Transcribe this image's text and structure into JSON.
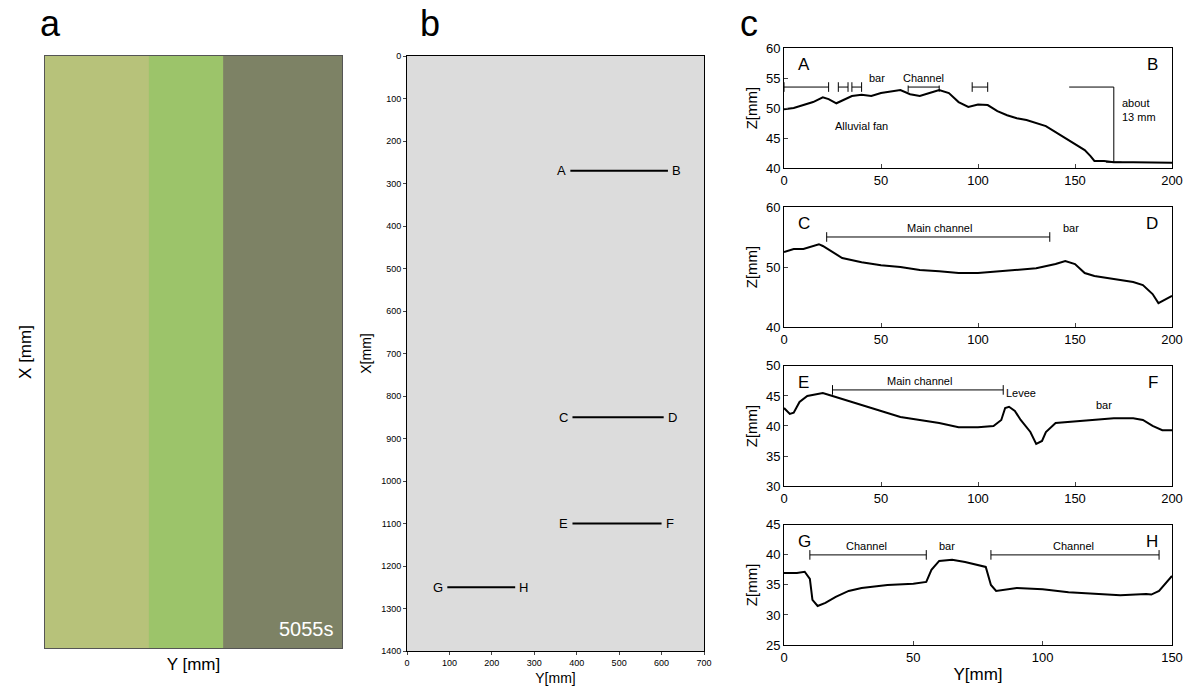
{
  "chart_data": [
    {
      "panel": "a",
      "type": "image",
      "xlabel": "Y [mm]",
      "ylabel": "X [mm]",
      "annotations": [
        {
          "text": "5055s"
        }
      ],
      "tick_labels": false
    },
    {
      "panel": "b",
      "type": "line",
      "xlabel": "Y[mm]",
      "ylabel": "X[mm]",
      "xlim": [
        0,
        700
      ],
      "xticks": [
        0,
        100,
        200,
        300,
        400,
        500,
        600,
        700
      ],
      "ylim": [
        1400,
        0
      ],
      "yticks": [
        0,
        100,
        200,
        300,
        400,
        500,
        600,
        700,
        800,
        900,
        1000,
        1100,
        1200,
        1300,
        1400
      ],
      "color": "#000000",
      "series": [
        {
          "start": "A",
          "end": "B",
          "x": [
            385,
            615
          ],
          "values": [
            270,
            270
          ]
        },
        {
          "start": "C",
          "end": "D",
          "x": [
            390,
            605
          ],
          "values": [
            850,
            850
          ]
        },
        {
          "start": "E",
          "end": "F",
          "x": [
            390,
            600
          ],
          "values": [
            1100,
            1100
          ]
        },
        {
          "start": "G",
          "end": "H",
          "x": [
            95,
            255
          ],
          "values": [
            1250,
            1250
          ]
        }
      ]
    },
    {
      "panel": "c",
      "type": "line",
      "color": "#000000",
      "subplots": [
        {
          "start": "A",
          "end": "B",
          "ylabel": "Z[mm]",
          "xlim": [
            0,
            200
          ],
          "xticks": [
            0,
            50,
            100,
            150,
            200
          ],
          "ylim": [
            40,
            60
          ],
          "yticks": [
            40,
            45,
            50,
            55,
            60
          ],
          "x": [
            0,
            5,
            10,
            15,
            20,
            23,
            27,
            30,
            35,
            40,
            45,
            50,
            55,
            60,
            65,
            70,
            75,
            80,
            85,
            90,
            95,
            100,
            105,
            110,
            115,
            120,
            125,
            130,
            135,
            140,
            145,
            150,
            155,
            158,
            160,
            165,
            170,
            180,
            190,
            200
          ],
          "values": [
            49.8,
            50,
            50.5,
            51,
            51.8,
            51.5,
            50.8,
            51.3,
            52,
            52.2,
            52,
            52.5,
            52.8,
            53,
            52.3,
            52,
            52.5,
            53,
            52.5,
            51,
            50.2,
            50.6,
            50.5,
            49.5,
            48.8,
            48.3,
            48,
            47.5,
            47,
            46,
            45,
            44,
            43,
            42,
            41.2,
            41.2,
            41,
            41,
            40.9,
            40.9
          ],
          "annotations": [
            {
              "text": "bar",
              "x": 48,
              "y": 55
            },
            {
              "text": "Channel",
              "x": 72,
              "y": 55
            },
            {
              "text": "Alluvial fan",
              "x": 40,
              "y": 47
            }
          ],
          "spans": [
            {
              "x0": 0,
              "x1": 23,
              "y": 53.5
            },
            {
              "x0": 28,
              "x1": 33,
              "y": 53.5
            },
            {
              "x0": 35,
              "x1": 40,
              "y": 53.5
            },
            {
              "x0": 64,
              "x1": 80,
              "y": 53.5
            },
            {
              "x0": 97,
              "x1": 105,
              "y": 53.5
            }
          ],
          "measure": {
            "label": "about 13 mm",
            "x0": 147,
            "x": 170,
            "y0": 41,
            "y1": 53.5
          }
        },
        {
          "start": "C",
          "end": "D",
          "ylabel": "Z[mm]",
          "xlim": [
            0,
            200
          ],
          "xticks": [
            0,
            50,
            100,
            150,
            200
          ],
          "ylim": [
            40,
            60
          ],
          "yticks": [
            40,
            50,
            60
          ],
          "x": [
            0,
            5,
            10,
            15,
            18,
            20,
            25,
            30,
            40,
            50,
            60,
            70,
            80,
            90,
            100,
            110,
            120,
            130,
            140,
            145,
            150,
            155,
            160,
            170,
            180,
            185,
            190,
            193,
            196,
            200
          ],
          "values": [
            52.5,
            53,
            53,
            53.5,
            53.8,
            53.5,
            52.5,
            51.5,
            50.8,
            50.3,
            50,
            49.5,
            49.3,
            49,
            49,
            49.3,
            49.5,
            49.8,
            50.5,
            51,
            50.5,
            49,
            48.5,
            48,
            47.5,
            47,
            45.5,
            44,
            44.5,
            45.2
          ],
          "annotations": [
            {
              "text": "Main channel",
              "x": 80,
              "y": 56.5
            },
            {
              "text": "bar",
              "x": 148,
              "y": 56.5
            }
          ],
          "spans": [
            {
              "x0": 22,
              "x1": 137,
              "y": 55
            }
          ]
        },
        {
          "start": "E",
          "end": "F",
          "ylabel": "Z[mm]",
          "xlim": [
            0,
            200
          ],
          "xticks": [
            0,
            50,
            100,
            150,
            200
          ],
          "ylim": [
            30,
            50
          ],
          "yticks": [
            30,
            35,
            40,
            45,
            50
          ],
          "x": [
            0,
            3,
            5,
            8,
            12,
            20,
            25,
            30,
            40,
            50,
            60,
            70,
            80,
            90,
            100,
            108,
            112,
            114,
            116,
            119,
            122,
            127,
            130,
            133,
            135,
            140,
            150,
            160,
            170,
            180,
            185,
            190,
            195,
            200
          ],
          "values": [
            43,
            42,
            42.2,
            44,
            45,
            45.5,
            45,
            44.5,
            43.5,
            42.5,
            41.5,
            41,
            40.5,
            39.8,
            39.8,
            40,
            41,
            43,
            43.2,
            42.5,
            41,
            39,
            37,
            37.5,
            39,
            40.5,
            40.8,
            41,
            41.3,
            41.3,
            41,
            40,
            39.3,
            39.3
          ],
          "annotations": [
            {
              "text": "Main channel",
              "x": 70,
              "y": 47.5
            },
            {
              "text": "Levee",
              "x": 122,
              "y": 45.5
            },
            {
              "text": "bar",
              "x": 165,
              "y": 43.5
            }
          ],
          "spans": [
            {
              "x0": 25,
              "x1": 113,
              "y": 46
            }
          ]
        },
        {
          "start": "G",
          "end": "H",
          "ylabel": "Z[mm]",
          "xlabel": "Y[mm]",
          "xlim": [
            0,
            150
          ],
          "xticks": [
            0,
            50,
            100,
            150
          ],
          "ylim": [
            25,
            45
          ],
          "yticks": [
            25,
            30,
            35,
            40,
            45
          ],
          "x": [
            0,
            5,
            8,
            10,
            11,
            13,
            16,
            20,
            25,
            30,
            40,
            50,
            55,
            57,
            60,
            65,
            70,
            75,
            78,
            80,
            82,
            90,
            100,
            110,
            120,
            130,
            140,
            142,
            145,
            148,
            150
          ],
          "values": [
            37,
            37,
            37.2,
            36,
            32.5,
            31.5,
            32,
            33,
            34,
            34.5,
            35,
            35.2,
            35.5,
            37.5,
            39,
            39.2,
            38.8,
            38.3,
            38,
            35,
            34,
            34.5,
            34.3,
            33.8,
            33.5,
            33.3,
            33.5,
            33.4,
            34,
            35.5,
            36.5
          ],
          "annotations": [
            {
              "text": "Channel",
              "x": 32,
              "y": 41.5
            },
            {
              "text": "bar",
              "x": 63,
              "y": 41.5
            },
            {
              "text": "Channel",
              "x": 112,
              "y": 41.5
            }
          ],
          "spans": [
            {
              "x0": 10,
              "x1": 55,
              "y": 40
            },
            {
              "x0": 80,
              "x1": 145,
              "y": 40
            }
          ]
        }
      ]
    }
  ]
}
